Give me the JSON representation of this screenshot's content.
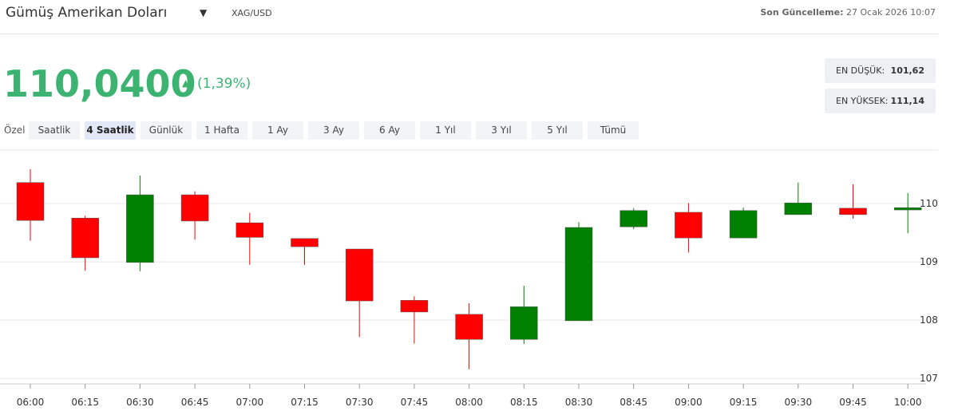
{
  "header": {
    "title": "Gümüş Amerikan Doları",
    "symbol": "XAG/USD",
    "update_label": "Son Güncelleme:",
    "update_value": "27 Ocak 2026 10:07"
  },
  "price": {
    "value": "110,0400",
    "change": "(1,39%)"
  },
  "range": {
    "low_label": "EN DÜŞÜK:",
    "low_value": "101,62",
    "high_label": "EN YÜKSEK:",
    "high_value": "111,14"
  },
  "periods": {
    "custom": "Özel",
    "items": [
      "Saatlik",
      "4 Saatlik",
      "Günlük",
      "1 Hafta",
      "1 Ay",
      "3 Ay",
      "6 Ay",
      "1 Yıl",
      "3 Yıl",
      "5 Yıl",
      "Tümü"
    ],
    "active": 1
  },
  "chart_data": {
    "type": "candlestick",
    "categories": [
      "06:00",
      "06:15",
      "06:30",
      "06:45",
      "07:00",
      "07:15",
      "07:30",
      "07:45",
      "08:00",
      "08:15",
      "08:30",
      "08:45",
      "09:00",
      "09:15",
      "09:30",
      "09:45",
      "10:00"
    ],
    "open": [
      110.36,
      109.75,
      108.99,
      110.15,
      109.67,
      109.4,
      109.22,
      108.34,
      108.1,
      107.67,
      107.99,
      109.6,
      109.85,
      109.41,
      109.81,
      109.92,
      109.89
    ],
    "high": [
      110.59,
      109.79,
      110.48,
      110.21,
      109.84,
      109.4,
      109.22,
      108.41,
      108.29,
      108.59,
      109.68,
      109.92,
      110.01,
      109.93,
      110.36,
      110.33,
      110.18
    ],
    "low": [
      109.36,
      108.85,
      108.84,
      109.38,
      108.95,
      108.95,
      107.71,
      107.6,
      107.16,
      107.59,
      107.99,
      109.56,
      109.16,
      109.41,
      109.81,
      109.74,
      109.49
    ],
    "close": [
      109.71,
      109.07,
      110.15,
      109.7,
      109.42,
      109.26,
      108.33,
      108.14,
      107.67,
      108.23,
      109.59,
      109.88,
      109.41,
      109.88,
      110.01,
      109.81,
      109.93
    ],
    "up_color": "#008000",
    "down_color": "#ff0000",
    "ylim": [
      106.88,
      110.89
    ],
    "yticks": [
      107,
      108,
      109,
      110
    ],
    "grid": true
  }
}
